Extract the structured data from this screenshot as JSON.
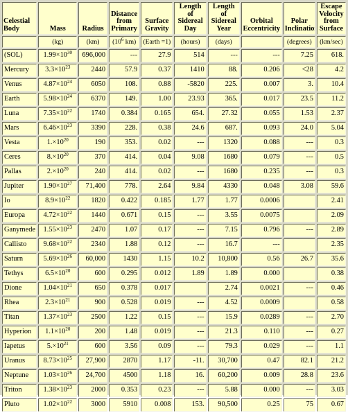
{
  "headers": [
    {
      "key": "body",
      "label": "Celestial Body"
    },
    {
      "key": "mass",
      "label": "Mass"
    },
    {
      "key": "radius",
      "label": "Radius"
    },
    {
      "key": "distance",
      "label": "Distance from Primary"
    },
    {
      "key": "gravity",
      "label": "Surface Gravity"
    },
    {
      "key": "day",
      "label": "Length of Sidereal Day"
    },
    {
      "key": "year",
      "label": "Length of Sidereal Year"
    },
    {
      "key": "eccentricity",
      "label": "Orbital Eccentricity"
    },
    {
      "key": "inclination",
      "label": "Polar Inclination"
    },
    {
      "key": "escape",
      "label": "Escape Velocity from Surface"
    }
  ],
  "units": {
    "body": "",
    "mass": "(kg)",
    "radius": "(km)",
    "distance_prefix": "(10",
    "distance_exp": "6",
    "distance_suffix": " km)",
    "gravity": "(Earth =1)",
    "day": "(hours)",
    "year": "(days)",
    "eccentricity": "",
    "inclination": "(degrees)",
    "escape": "(km/sec)"
  },
  "rows": [
    {
      "name": "(SOL)",
      "mass_m": "1.99",
      "mass_e": "30",
      "radius": "696,000",
      "distance": "---",
      "gravity": "27.9",
      "day": "514",
      "year": "---",
      "ecc": "---",
      "incl": "7.25",
      "escape": "618."
    },
    {
      "name": "Mercury",
      "mass_m": "3.3",
      "mass_e": "23",
      "radius": "2440",
      "distance": "57.9",
      "gravity": "0.37",
      "day": "1410",
      "year": "88.",
      "ecc": "0.206",
      "incl": "<28",
      "escape": "4.2"
    },
    {
      "name": "Venus",
      "mass_m": "4.87",
      "mass_e": "24",
      "radius": "6050",
      "distance": "108.",
      "gravity": "0.88",
      "day": "-5820",
      "year": "225.",
      "ecc": "0.007",
      "incl": "3.",
      "escape": "10.4"
    },
    {
      "name": "Earth",
      "mass_m": "5.98",
      "mass_e": "24",
      "radius": "6370",
      "distance": "149.",
      "gravity": "1.00",
      "day": "23.93",
      "year": "365.",
      "ecc": "0.017",
      "incl": "23.5",
      "escape": "11.2"
    },
    {
      "name": "Luna",
      "mass_m": "7.35",
      "mass_e": "22",
      "radius": "1740",
      "distance": "0.384",
      "gravity": "0.165",
      "day": "654.",
      "year": "27.32",
      "ecc": "0.055",
      "incl": "1.53",
      "escape": "2.37"
    },
    {
      "name": "Mars",
      "mass_m": "6.46",
      "mass_e": "23",
      "radius": "3390",
      "distance": "228.",
      "gravity": "0.38",
      "day": "24.6",
      "year": "687.",
      "ecc": "0.093",
      "incl": "24.0",
      "escape": "5.04"
    },
    {
      "name": "Vesta",
      "mass_m": "1.",
      "mass_e": "20",
      "radius": "190",
      "distance": "353.",
      "gravity": "0.02",
      "day": "---",
      "year": "1320",
      "ecc": "0.088",
      "incl": "---",
      "escape": "0.3"
    },
    {
      "name": "Ceres",
      "mass_m": "8.",
      "mass_e": "20",
      "radius": "370",
      "distance": "414.",
      "gravity": "0.04",
      "day": "9.08",
      "year": "1680",
      "ecc": "0.079",
      "incl": "---",
      "escape": "0.5"
    },
    {
      "name": "Pallas",
      "mass_m": "2.",
      "mass_e": "20",
      "radius": "240",
      "distance": "414.",
      "gravity": "0.02",
      "day": "---",
      "year": "1680",
      "ecc": "0.235",
      "incl": "---",
      "escape": "0.3"
    },
    {
      "name": "Jupiter",
      "mass_m": "1.90",
      "mass_e": "27",
      "radius": "71,400",
      "distance": "778.",
      "gravity": "2.64",
      "day": "9.84",
      "year": "4330",
      "ecc": "0.048",
      "incl": "3.08",
      "escape": "59.6"
    },
    {
      "name": "Io",
      "mass_m": "8.9",
      "mass_e": "22",
      "radius": "1820",
      "distance": "0.422",
      "gravity": "0.185",
      "day": "1.77",
      "year": "1.77",
      "ecc": "0.0006",
      "incl": "",
      "escape": "2.41"
    },
    {
      "name": "Europa",
      "mass_m": "4.72",
      "mass_e": "22",
      "radius": "1440",
      "distance": "0.671",
      "gravity": "0.15",
      "day": "---",
      "year": "3.55",
      "ecc": "0.0075",
      "incl": "",
      "escape": "2.09"
    },
    {
      "name": "Ganymede",
      "mass_m": "1.55",
      "mass_e": "23",
      "radius": "2470",
      "distance": "1.07",
      "gravity": "0.17",
      "day": "---",
      "year": "7.15",
      "ecc": "0.796",
      "incl": "---",
      "escape": "2.89"
    },
    {
      "name": "Callisto",
      "mass_m": "9.68",
      "mass_e": "22",
      "radius": "2340",
      "distance": "1.88",
      "gravity": "0.12",
      "day": "---",
      "year": "16.7",
      "ecc": "---",
      "incl": "",
      "escape": "2.35"
    },
    {
      "name": "Saturn",
      "mass_m": "5.69",
      "mass_e": "26",
      "radius": "60,000",
      "distance": "1430",
      "gravity": "1.15",
      "day": "10.2",
      "year": "10,800",
      "ecc": "0.56",
      "incl": "26.7",
      "escape": "35.6"
    },
    {
      "name": "Tethys",
      "mass_m": "6.5",
      "mass_e": "20",
      "radius": "600",
      "distance": "0.295",
      "gravity": "0.012",
      "day": "1.89",
      "year": "1.89",
      "ecc": "0.000",
      "incl": "",
      "escape": "0.38"
    },
    {
      "name": "Dione",
      "mass_m": "1.04",
      "mass_e": "21",
      "radius": "650",
      "distance": "0.378",
      "gravity": "0.017",
      "day": "",
      "year": "2.74",
      "ecc": "0.0021",
      "incl": "---",
      "escape": "0.46"
    },
    {
      "name": "Rhea",
      "mass_m": "2.3",
      "mass_e": "21",
      "radius": "900",
      "distance": "0.528",
      "gravity": "0.019",
      "day": "---",
      "year": "4.52",
      "ecc": "0.0009",
      "incl": "",
      "escape": "0.58"
    },
    {
      "name": "Titan",
      "mass_m": "1.37",
      "mass_e": "23",
      "radius": "2500",
      "distance": "1.22",
      "gravity": "0.15",
      "day": "---",
      "year": "15.9",
      "ecc": "0.0289",
      "incl": "---",
      "escape": "2.70"
    },
    {
      "name": "Hyperion",
      "mass_m": "1.1",
      "mass_e": "20",
      "radius": "200",
      "distance": "1.48",
      "gravity": "0.019",
      "day": "---",
      "year": "21.3",
      "ecc": "0.110",
      "incl": "---",
      "escape": "0.27"
    },
    {
      "name": "Iapetus",
      "mass_m": "5.",
      "mass_e": "21",
      "radius": "600",
      "distance": "3.56",
      "gravity": "0.09",
      "day": "---",
      "year": "79.3",
      "ecc": "0.029",
      "incl": "---",
      "escape": "1.1"
    },
    {
      "name": "Uranus",
      "mass_m": "8.73",
      "mass_e": "25",
      "radius": "27,900",
      "distance": "2870",
      "gravity": "1.17",
      "day": "-11.",
      "year": "30,700",
      "ecc": "0.47",
      "incl": "82.1",
      "escape": "21.2"
    },
    {
      "name": "Neptune",
      "mass_m": "1.03",
      "mass_e": "26",
      "radius": "24,700",
      "distance": "4500",
      "gravity": "1.18",
      "day": "16.",
      "year": "60,200",
      "ecc": "0.009",
      "incl": "28.8",
      "escape": "23.6"
    },
    {
      "name": "Triton",
      "mass_m": "1.38",
      "mass_e": "23",
      "radius": "2000",
      "distance": "0.353",
      "gravity": "0.23",
      "day": "---",
      "year": "5.88",
      "ecc": "0.000",
      "incl": "---",
      "escape": "3.03"
    },
    {
      "name": "Pluto",
      "mass_m": "1.02",
      "mass_e": "22",
      "radius": "3000",
      "distance": "5910",
      "gravity": "0.008",
      "day": "153.",
      "year": "90,500",
      "ecc": "0.25",
      "incl": "75",
      "escape": "0.67"
    }
  ]
}
